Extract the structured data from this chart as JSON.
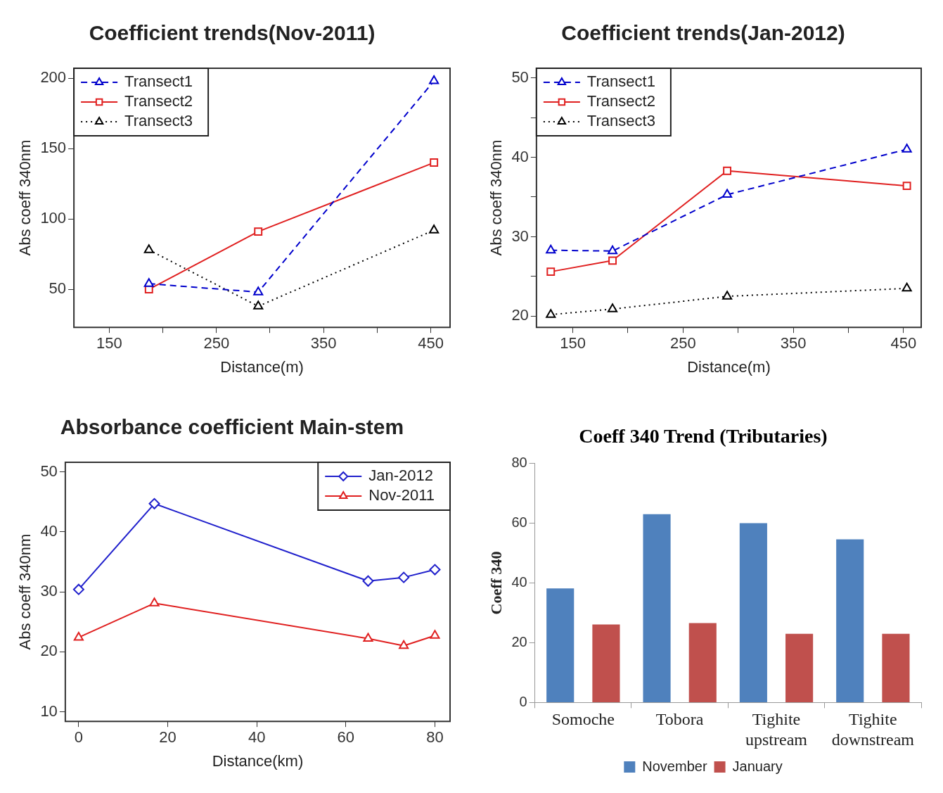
{
  "chart_data": [
    {
      "type": "line",
      "title": "Coefficient trends(Nov-2011)",
      "xlabel": "Distance(m)",
      "ylabel": "Abs coeff 340nm",
      "xlim": [
        117,
        468
      ],
      "xticks": [
        150,
        {
          "value": 200,
          "label": null
        },
        250,
        {
          "value": 300,
          "label": null
        },
        350,
        {
          "value": 400,
          "label": null
        },
        450
      ],
      "ylim": [
        23,
        207
      ],
      "yticks": [
        50,
        100,
        150,
        200
      ],
      "grid": false,
      "legend": "top left",
      "series": [
        {
          "name": "Transect1",
          "color": "#0000cc",
          "x": [
            187,
            289,
            453
          ],
          "values": [
            54,
            48,
            198
          ],
          "marker": "triangle",
          "line_style": "dashed"
        },
        {
          "name": "Transect2",
          "color": "#e02020",
          "x": [
            187,
            289,
            453
          ],
          "values": [
            50,
            91,
            140
          ],
          "marker": "square",
          "line_style": "solid"
        },
        {
          "name": "Transect3",
          "color": "#000000",
          "x": [
            187,
            289,
            453
          ],
          "values": [
            78,
            38,
            92
          ],
          "marker": "triangle",
          "line_style": "dotted"
        }
      ]
    },
    {
      "type": "line",
      "title": "Coefficient trends(Jan-2012)",
      "xlabel": "Distance(m)",
      "ylabel": "Abs coeff 340nm",
      "xlim": [
        117,
        466
      ],
      "xticks": [
        150,
        {
          "value": 200,
          "label": null
        },
        250,
        {
          "value": 300,
          "label": null
        },
        350,
        {
          "value": 400,
          "label": null
        },
        450
      ],
      "ylim": [
        18.6,
        51.2
      ],
      "yticks": [
        20,
        {
          "value": 25,
          "label": null
        },
        30,
        {
          "value": 35,
          "label": null
        },
        40,
        {
          "value": 45,
          "label": null
        },
        50
      ],
      "grid": false,
      "legend": "top left",
      "series": [
        {
          "name": "Transect1",
          "color": "#0000cc",
          "x": [
            130,
            186,
            290,
            453
          ],
          "values": [
            28.3,
            28.2,
            35.3,
            41.0
          ],
          "marker": "triangle",
          "line_style": "dashed"
        },
        {
          "name": "Transect2",
          "color": "#e02020",
          "x": [
            130,
            186,
            290,
            453
          ],
          "values": [
            25.6,
            27.0,
            38.3,
            36.4
          ],
          "marker": "square",
          "line_style": "solid"
        },
        {
          "name": "Transect3",
          "color": "#000000",
          "x": [
            130,
            186,
            290,
            453
          ],
          "values": [
            20.2,
            20.9,
            22.5,
            23.5
          ],
          "marker": "triangle",
          "line_style": "dotted"
        }
      ]
    },
    {
      "type": "line",
      "title": "Absorbance coefficient Main-stem",
      "xlabel": "Distance(km)",
      "ylabel": "Abs coeff 340nm",
      "xlim": [
        -3,
        83.4
      ],
      "xticks": [
        0,
        20,
        40,
        60,
        80
      ],
      "ylim": [
        8.4,
        51.6
      ],
      "yticks": [
        10,
        20,
        30,
        40,
        50
      ],
      "grid": false,
      "legend": "top right",
      "series": [
        {
          "name": "Jan-2012",
          "color": "#2020cc",
          "x": [
            0,
            17,
            65,
            73,
            80
          ],
          "values": [
            30.4,
            44.7,
            31.8,
            32.4,
            33.7
          ],
          "marker": "diamond",
          "line_style": "solid"
        },
        {
          "name": "Nov-2011",
          "color": "#e02020",
          "x": [
            0,
            17,
            65,
            73,
            80
          ],
          "values": [
            22.4,
            28.1,
            22.2,
            21.0,
            22.7
          ],
          "marker": "triangle",
          "line_style": "solid"
        }
      ]
    },
    {
      "type": "bar",
      "title": "Coeff 340 Trend (Tributaries)",
      "ylabel": "Coeff 340",
      "categories": [
        "Somoche",
        "Tobora",
        "Tighite upstream",
        "Tighite downstream"
      ],
      "ylim": [
        0,
        80
      ],
      "yticks": [
        0,
        20,
        40,
        60,
        80
      ],
      "grid": false,
      "legend": "bottom",
      "series": [
        {
          "name": "November",
          "color": "#4f81bd",
          "values": [
            38.2,
            63.0,
            60.0,
            54.6
          ]
        },
        {
          "name": "January",
          "color": "#c0504d",
          "values": [
            26.1,
            26.6,
            23.0,
            23.0
          ]
        }
      ]
    }
  ]
}
